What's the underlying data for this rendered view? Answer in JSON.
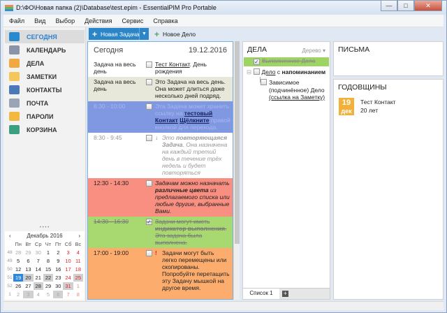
{
  "window": {
    "title": "D:\\ФО\\Новая папка (2)\\Database\\test.epim - EssentialPIM Pro Portable",
    "minimize": "—",
    "maximize": "□",
    "close": "✕"
  },
  "menu": [
    "Файл",
    "Вид",
    "Выбор",
    "Действия",
    "Сервис",
    "Справка"
  ],
  "sidebar": {
    "collapse": "<",
    "items": [
      {
        "label": "СЕГОДНЯ",
        "icon": "home-icon",
        "color": "#2a8ad0"
      },
      {
        "label": "КАЛЕНДАРЬ",
        "icon": "calendar-icon",
        "color": "#8a94a8"
      },
      {
        "label": "ДЕЛА",
        "icon": "clipboard-check-icon",
        "color": "#f0a840"
      },
      {
        "label": "ЗАМЕТКИ",
        "icon": "note-icon",
        "color": "#f5c65a"
      },
      {
        "label": "КОНТАКТЫ",
        "icon": "contact-card-icon",
        "color": "#4a78b8"
      },
      {
        "label": "ПОЧТА",
        "icon": "mail-icon",
        "color": "#9aa4b4"
      },
      {
        "label": "ПАРОЛИ",
        "icon": "key-icon",
        "color": "#f2b840"
      },
      {
        "label": "КОРЗИНА",
        "icon": "trash-icon",
        "color": "#3aa080"
      }
    ]
  },
  "calendar": {
    "month": "Декабрь  2016",
    "prev": "‹",
    "next": "›",
    "days": [
      "Пн",
      "Вт",
      "Ср",
      "Чт",
      "Пт",
      "Сб",
      "Вс"
    ],
    "weeks": [
      {
        "n": "48",
        "d": [
          [
            "28",
            "o"
          ],
          [
            "29",
            "o"
          ],
          [
            "30",
            "o"
          ],
          [
            "1",
            ""
          ],
          [
            "2",
            ""
          ],
          [
            "3",
            "r"
          ],
          [
            "4",
            "r"
          ]
        ]
      },
      {
        "n": "49",
        "d": [
          [
            "5",
            ""
          ],
          [
            "6",
            ""
          ],
          [
            "7",
            ""
          ],
          [
            "8",
            ""
          ],
          [
            "9",
            ""
          ],
          [
            "10",
            "r"
          ],
          [
            "11",
            "r"
          ]
        ]
      },
      {
        "n": "50",
        "d": [
          [
            "12",
            ""
          ],
          [
            "13",
            ""
          ],
          [
            "14",
            ""
          ],
          [
            "15",
            ""
          ],
          [
            "16",
            ""
          ],
          [
            "17",
            "r"
          ],
          [
            "18",
            "r"
          ]
        ]
      },
      {
        "n": "51",
        "d": [
          [
            "19",
            "today"
          ],
          [
            "20",
            "ev"
          ],
          [
            "21",
            ""
          ],
          [
            "22",
            "ev"
          ],
          [
            "23",
            ""
          ],
          [
            "24",
            "r"
          ],
          [
            "25",
            "r ev"
          ]
        ]
      },
      {
        "n": "52",
        "d": [
          [
            "26",
            ""
          ],
          [
            "27",
            ""
          ],
          [
            "28",
            "ev"
          ],
          [
            "29",
            ""
          ],
          [
            "30",
            ""
          ],
          [
            "31",
            "r ev"
          ],
          [
            "1",
            "ro"
          ]
        ]
      },
      {
        "n": "1",
        "d": [
          [
            "2",
            "o"
          ],
          [
            "3",
            "o ev"
          ],
          [
            "4",
            "o"
          ],
          [
            "5",
            "o"
          ],
          [
            "6",
            "o ev"
          ],
          [
            "7",
            "ro"
          ],
          [
            "8",
            "ro"
          ]
        ]
      }
    ]
  },
  "toolbar": {
    "new_task": "Новая Задача",
    "new_delo": "Новое Дело"
  },
  "today": {
    "title": "Сегодня",
    "date": "19.12.2016",
    "rows": [
      {
        "time": "Задача на весь день",
        "link": "Тест Контакт",
        "text": ". День рождения",
        "bg": "#ffffff"
      },
      {
        "time": "Задача на весь день",
        "text": "Это Задача на весь день. Она может длиться даже несколько дней подряд.",
        "bg": "#e8e8da"
      },
      {
        "time": "8:30 - 10:00",
        "faint1": "Эта Задача может хранить ссылку на",
        "link1": "тестовый Контакт",
        "link2": "Щёлкните",
        "faint2": "правой кнопкой для перехода.",
        "bg": "#8097e2"
      },
      {
        "time": "8:30 - 9:45",
        "pre": "Это",
        "bold": "повторяющаяся Задача",
        "post": ". Она назначена на каждый третий день в течение трёх недель и будет повторяться",
        "mark": "↓",
        "bg": "#ffffff"
      },
      {
        "time": "12:30 - 14:30",
        "pre": "Задачам можно назначать",
        "bold": "различные цвета",
        "post": "из предлагаемого списка или любые другие, выбранные Вами.",
        "bg": "#f98f80"
      },
      {
        "time": "14:30 - 16:30",
        "pre": "Задачи могут иметь",
        "bold": "индикатор выполнения",
        "post": ". Эта задача была выполнена.",
        "bg": "#a8d870",
        "checked": "✓"
      },
      {
        "time": "17:00 - 19:00",
        "text": "Задачи могут быть легко перемещены или скопированы. Попробуйте перетащить эту Задачу мышкой на другое время.",
        "mark": "!",
        "bg": "#fcad6e"
      }
    ]
  },
  "dela": {
    "title": "ДЕЛА",
    "view": "Дерево ▾",
    "done": "Выполненное Дело",
    "checked": "✓",
    "expander": "⊟",
    "reminder_link": "Дело",
    "reminder_mid": " с ",
    "reminder_bold": "напоминанием",
    "child1": "Зависимое (подчинённое) Дело",
    "child_link": "(ссылка на Заметку)",
    "tab": "Список 1",
    "add_tab": "+"
  },
  "letters": {
    "title": "ПИСЬМА"
  },
  "anniversaries": {
    "title": "ГОДОВЩИНЫ",
    "day": "19",
    "month": "дек",
    "name": "Тест Контакт",
    "years": "20 лет"
  }
}
